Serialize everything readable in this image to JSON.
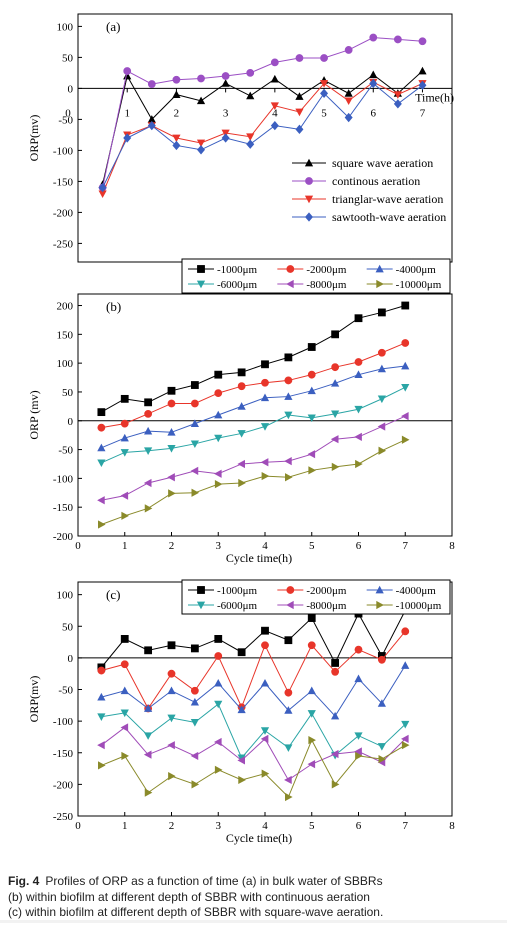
{
  "caption": {
    "label": "Fig. 4",
    "line1": "Profiles of ORP as a function of time (a) in bulk water of SBBRs",
    "line2": "(b) within biofilm at different depth of SBBR with continuous aeration",
    "line3": "(c) within biofilm at different depth of SBBR with square-wave aeration."
  },
  "chart_data": [
    {
      "panel": "(a)",
      "type": "line",
      "ylabel": "ORP(mv)",
      "xlabel": "Time(h)",
      "ylim": [
        -280,
        120
      ],
      "yticks": [
        100,
        50,
        0,
        -50,
        -100,
        -150,
        -200,
        -250
      ],
      "xticks": [
        1,
        2,
        3,
        4,
        5,
        6,
        7
      ],
      "xticks_note": "0",
      "legend_position": "center-right",
      "series": [
        {
          "name": "square wave aeration",
          "color": "#000000",
          "marker": "triangle-up",
          "x": [
            0.5,
            1,
            1.5,
            2,
            2.5,
            3,
            3.5,
            4,
            4.5,
            5,
            5.5,
            6,
            6.5,
            7
          ],
          "y": [
            -155,
            20,
            -50,
            -10,
            -20,
            8,
            -12,
            15,
            -13,
            13,
            -8,
            22,
            -8,
            28
          ]
        },
        {
          "name": "continous aeration",
          "color": "#9b4fc4",
          "marker": "circle",
          "x": [
            0.5,
            1,
            1.5,
            2,
            2.5,
            3,
            3.5,
            4,
            4.5,
            5,
            5.5,
            6,
            6.5,
            7
          ],
          "y": [
            -160,
            28,
            7,
            14,
            16,
            20,
            25,
            42,
            49,
            49,
            62,
            82,
            79,
            76
          ]
        },
        {
          "name": "trianglar-wave aeration",
          "color": "#e8352a",
          "marker": "triangle-down",
          "x": [
            0.5,
            1,
            1.5,
            2,
            2.5,
            3,
            3.5,
            4,
            4.5,
            5,
            5.5,
            6,
            6.5,
            7
          ],
          "y": [
            -170,
            -75,
            -60,
            -80,
            -88,
            -72,
            -78,
            -28,
            -38,
            8,
            -20,
            10,
            -10,
            8
          ]
        },
        {
          "name": "sawtooth-wave aeration",
          "color": "#3b5fc0",
          "marker": "diamond",
          "x": [
            0.5,
            1,
            1.5,
            2,
            2.5,
            3,
            3.5,
            4,
            4.5,
            5,
            5.5,
            6,
            6.5,
            7
          ],
          "y": [
            -160,
            -80,
            -60,
            -92,
            -99,
            -80,
            -90,
            -60,
            -66,
            -8,
            -47,
            8,
            -25,
            5
          ]
        }
      ]
    },
    {
      "panel": "(b)",
      "type": "line",
      "ylabel": "ORP (mv)",
      "xlabel": "Cycle time(h)",
      "xlim": [
        0,
        8
      ],
      "ylim": [
        -200,
        220
      ],
      "yticks": [
        200,
        150,
        100,
        50,
        0,
        -50,
        -100,
        -150,
        -200
      ],
      "xticks": [
        0,
        1,
        2,
        3,
        4,
        5,
        6,
        7,
        8
      ],
      "legend_position": "top",
      "x": [
        0.5,
        1,
        1.5,
        2,
        2.5,
        3,
        3.5,
        4,
        4.5,
        5,
        5.5,
        6,
        6.5,
        7
      ],
      "series": [
        {
          "name": "-1000μm",
          "color": "#000000",
          "marker": "square",
          "y": [
            15,
            38,
            32,
            52,
            62,
            80,
            84,
            98,
            110,
            128,
            150,
            178,
            188,
            200
          ]
        },
        {
          "name": "-2000μm",
          "color": "#e8352a",
          "marker": "circle",
          "y": [
            -12,
            -5,
            12,
            30,
            30,
            48,
            60,
            66,
            70,
            80,
            93,
            102,
            118,
            135
          ]
        },
        {
          "name": "-4000μm",
          "color": "#3b5fc0",
          "marker": "triangle-up",
          "y": [
            -47,
            -30,
            -18,
            -20,
            -5,
            10,
            25,
            40,
            42,
            52,
            65,
            80,
            90,
            95
          ]
        },
        {
          "name": "-6000μm",
          "color": "#2aa5a5",
          "marker": "triangle-down",
          "y": [
            -73,
            -55,
            -52,
            -48,
            -40,
            -30,
            -22,
            -10,
            10,
            5,
            12,
            20,
            38,
            58
          ]
        },
        {
          "name": "-8000μm",
          "color": "#a04cb8",
          "marker": "triangle-left",
          "y": [
            -138,
            -130,
            -108,
            -98,
            -87,
            -92,
            -75,
            -72,
            -70,
            -58,
            -32,
            -28,
            -10,
            8
          ]
        },
        {
          "name": "-10000μm",
          "color": "#8a8a2a",
          "marker": "triangle-right",
          "y": [
            -180,
            -165,
            -152,
            -126,
            -125,
            -110,
            -108,
            -96,
            -98,
            -86,
            -80,
            -75,
            -52,
            -33
          ]
        }
      ]
    },
    {
      "panel": "(c)",
      "type": "line",
      "ylabel": "ORP(mv)",
      "xlabel": "Cycle time(h)",
      "xlim": [
        0,
        8
      ],
      "ylim": [
        -250,
        120
      ],
      "yticks": [
        100,
        50,
        0,
        -50,
        -100,
        -150,
        -200,
        -250
      ],
      "xticks": [
        0,
        1,
        2,
        3,
        4,
        5,
        6,
        7,
        8
      ],
      "legend_position": "top",
      "x": [
        0.5,
        1,
        1.5,
        2,
        2.5,
        3,
        3.5,
        4,
        4.5,
        5,
        5.5,
        6,
        6.5,
        7
      ],
      "series": [
        {
          "name": "-1000μm",
          "color": "#000000",
          "marker": "square",
          "y": [
            -15,
            30,
            12,
            20,
            15,
            30,
            9,
            43,
            28,
            63,
            -8,
            70,
            3,
            75
          ]
        },
        {
          "name": "-2000μm",
          "color": "#e8352a",
          "marker": "circle",
          "y": [
            -20,
            -10,
            -80,
            -25,
            -52,
            3,
            -78,
            20,
            -55,
            20,
            -22,
            13,
            -3,
            42
          ]
        },
        {
          "name": "-4000μm",
          "color": "#3b5fc0",
          "marker": "triangle-up",
          "y": [
            -62,
            -52,
            -80,
            -52,
            -70,
            -40,
            -82,
            -40,
            -83,
            -52,
            -92,
            -33,
            -72,
            -12
          ]
        },
        {
          "name": "-6000μm",
          "color": "#2aa5a5",
          "marker": "triangle-down",
          "y": [
            -93,
            -87,
            -123,
            -95,
            -102,
            -73,
            -158,
            -115,
            -142,
            -88,
            -154,
            -123,
            -140,
            -105
          ]
        },
        {
          "name": "-8000μm",
          "color": "#a04cb8",
          "marker": "triangle-left",
          "y": [
            -138,
            -110,
            -153,
            -138,
            -155,
            -133,
            -162,
            -128,
            -193,
            -168,
            -152,
            -148,
            -165,
            -128
          ]
        },
        {
          "name": "-10000μm",
          "color": "#8a8a2a",
          "marker": "triangle-right",
          "y": [
            -170,
            -155,
            -213,
            -187,
            -200,
            -177,
            -193,
            -183,
            -220,
            -130,
            -200,
            -155,
            -160,
            -138
          ]
        }
      ]
    }
  ]
}
